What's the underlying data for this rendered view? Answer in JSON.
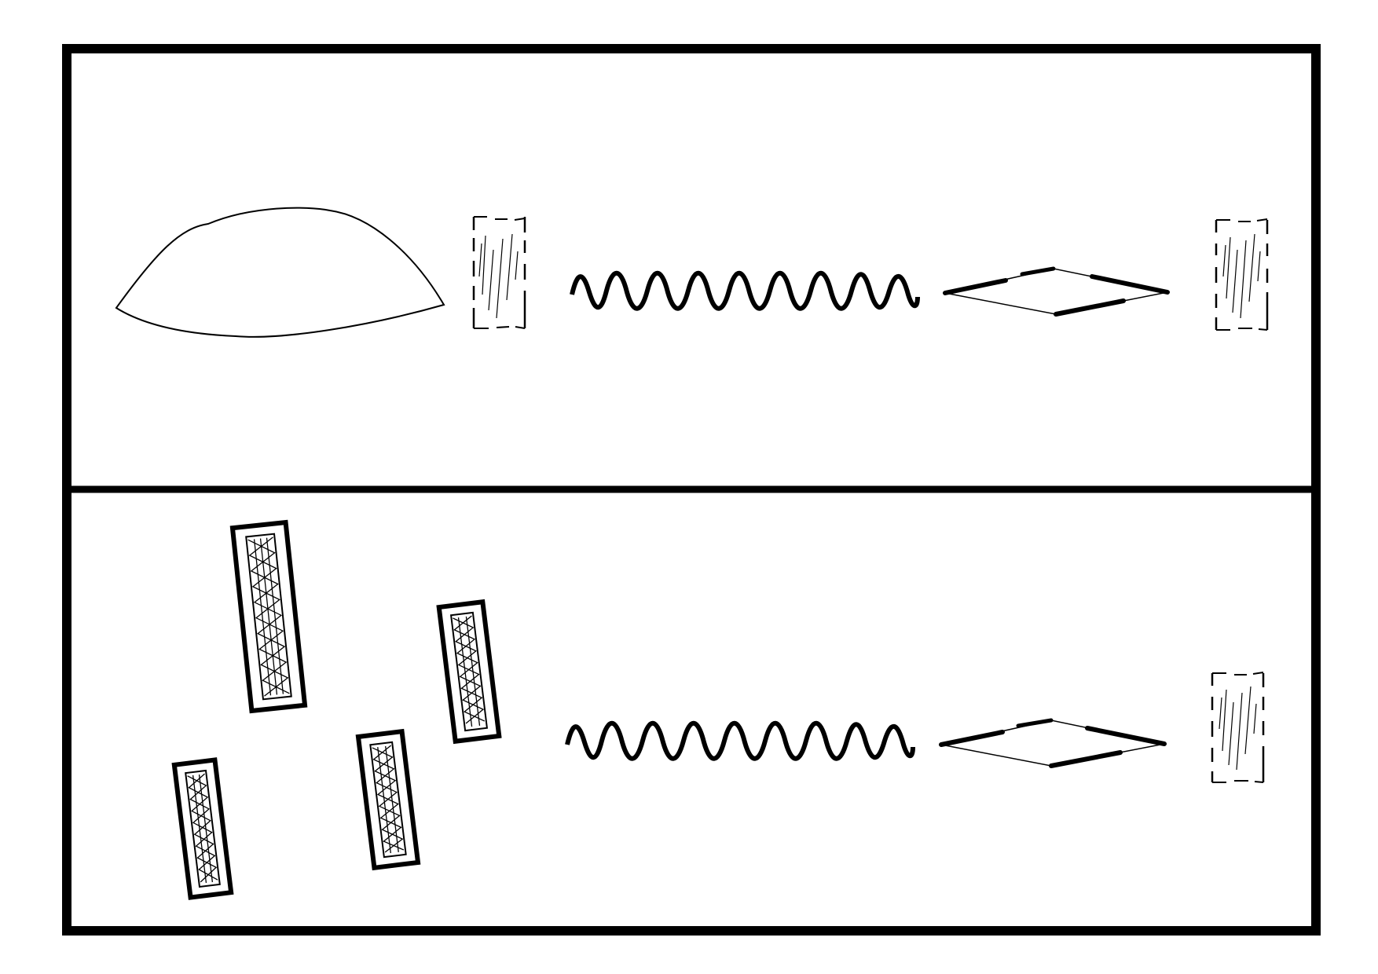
{
  "colors": {
    "ink": "#000000",
    "paper": "#ffffff"
  },
  "panels": [
    {
      "id": "top",
      "elements": [
        {
          "kind": "lens",
          "icon": "convex-lens-icon"
        },
        {
          "kind": "sample",
          "icon": "dashed-sample-icon",
          "state": "faint"
        },
        {
          "kind": "wave",
          "icon": "wavy-beam-icon"
        },
        {
          "kind": "diamond",
          "icon": "diamond-focus-icon"
        },
        {
          "kind": "sample",
          "icon": "dashed-sample-icon",
          "state": "faint"
        }
      ]
    },
    {
      "id": "bottom",
      "elements": [
        {
          "kind": "cluster",
          "icon": "filled-sample-strips-icon",
          "count": 4
        },
        {
          "kind": "wave",
          "icon": "wavy-beam-icon"
        },
        {
          "kind": "diamond",
          "icon": "diamond-focus-icon"
        },
        {
          "kind": "sample",
          "icon": "dashed-sample-icon",
          "state": "faint"
        }
      ]
    }
  ]
}
